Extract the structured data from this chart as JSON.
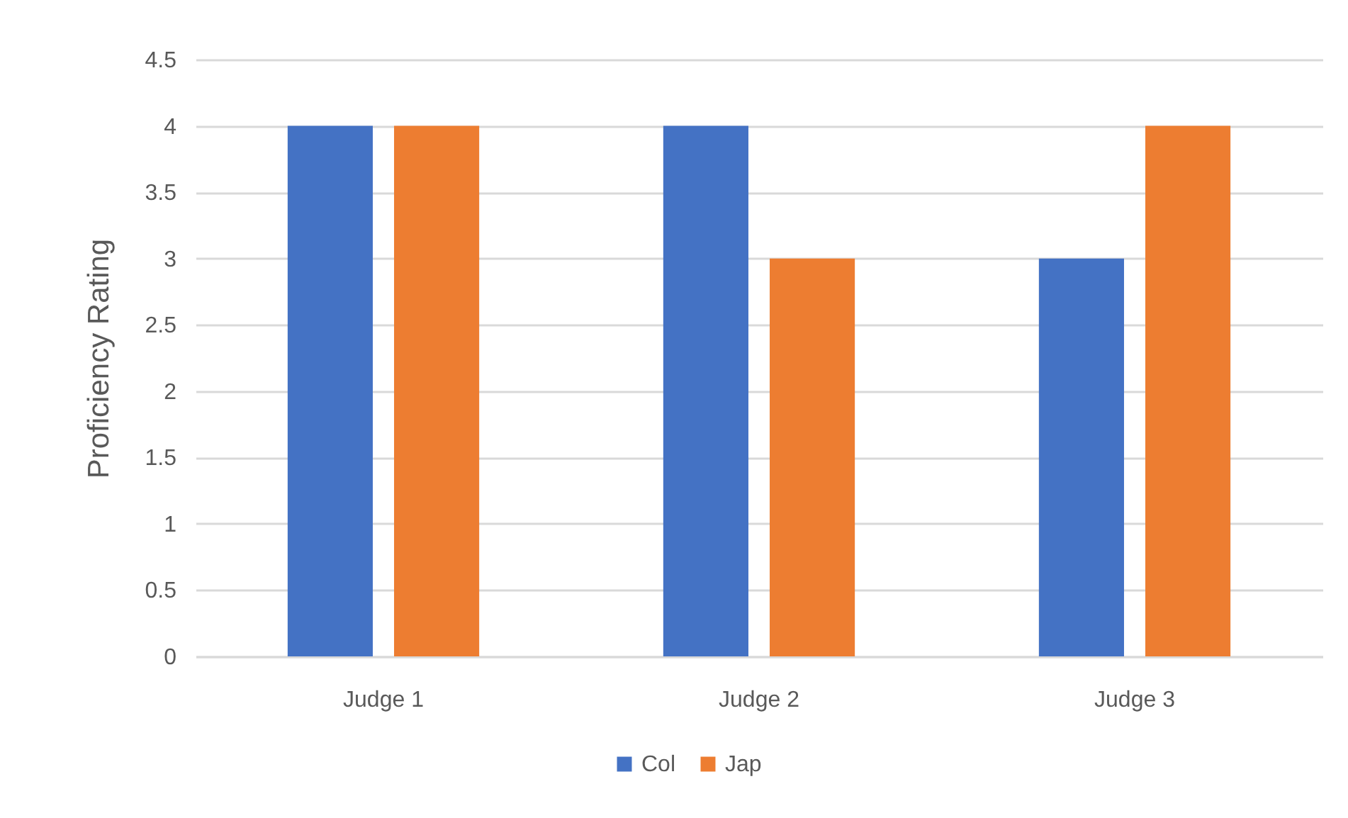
{
  "chart_data": {
    "type": "bar",
    "ylabel": "Proficiency Rating",
    "categories": [
      "Judge 1",
      "Judge 2",
      "Judge 3"
    ],
    "series": [
      {
        "name": "Col",
        "color": "#4472c4",
        "values": [
          4,
          4,
          3
        ]
      },
      {
        "name": "Jap",
        "color": "#ed7d31",
        "values": [
          4,
          3,
          4
        ]
      }
    ],
    "ylim": [
      0,
      4.5
    ],
    "yticks": [
      0,
      0.5,
      1,
      1.5,
      2,
      2.5,
      3,
      3.5,
      4,
      4.5
    ],
    "grid": "y",
    "legend": "bottom"
  }
}
